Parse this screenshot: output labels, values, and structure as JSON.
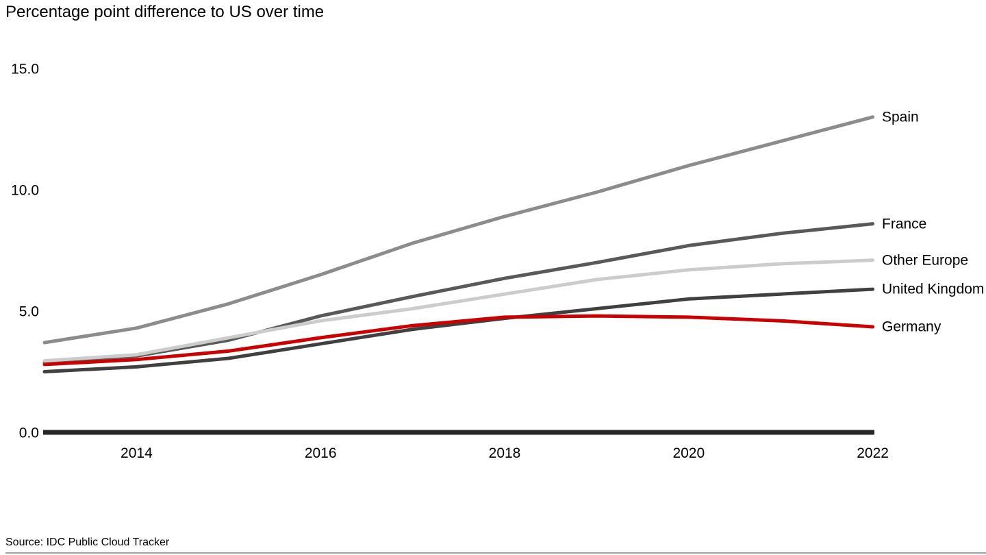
{
  "title": "Percentage point difference to US over time",
  "source": "Source: IDC Public Cloud Tracker",
  "chart_data": {
    "type": "line",
    "x": [
      2013,
      2014,
      2015,
      2016,
      2017,
      2018,
      2019,
      2020,
      2021,
      2022
    ],
    "x_ticks": [
      2014,
      2016,
      2018,
      2020,
      2022
    ],
    "x_tick_labels": [
      "2014",
      "2016",
      "2018",
      "2020",
      "2022"
    ],
    "y_ticks": [
      0,
      5,
      10,
      15
    ],
    "y_tick_labels": [
      "0.0",
      "5.0",
      "10.0",
      "15.0"
    ],
    "ylim": [
      0,
      15
    ],
    "xlim": [
      2013,
      2022
    ],
    "xlabel": "",
    "ylabel": "",
    "grid": false,
    "legend_position": "right-end-labels",
    "axis_color": "#262626",
    "series": [
      {
        "name": "Spain",
        "color": "#8c8c8c",
        "values": [
          3.7,
          4.3,
          5.3,
          6.5,
          7.8,
          8.9,
          9.9,
          11.0,
          12.0,
          13.0
        ]
      },
      {
        "name": "France",
        "color": "#595959",
        "values": [
          2.9,
          3.15,
          3.8,
          4.8,
          5.6,
          6.35,
          7.0,
          7.7,
          8.2,
          8.6
        ]
      },
      {
        "name": "Other Europe",
        "color": "#cccccc",
        "values": [
          2.95,
          3.2,
          3.9,
          4.6,
          5.1,
          5.7,
          6.3,
          6.7,
          6.95,
          7.1
        ]
      },
      {
        "name": "United Kingdom",
        "color": "#404040",
        "values": [
          2.5,
          2.7,
          3.05,
          3.65,
          4.25,
          4.7,
          5.1,
          5.5,
          5.7,
          5.9
        ]
      },
      {
        "name": "Germany",
        "color": "#cc0000",
        "values": [
          2.8,
          3.0,
          3.35,
          3.9,
          4.4,
          4.75,
          4.8,
          4.75,
          4.6,
          4.35
        ]
      }
    ]
  }
}
